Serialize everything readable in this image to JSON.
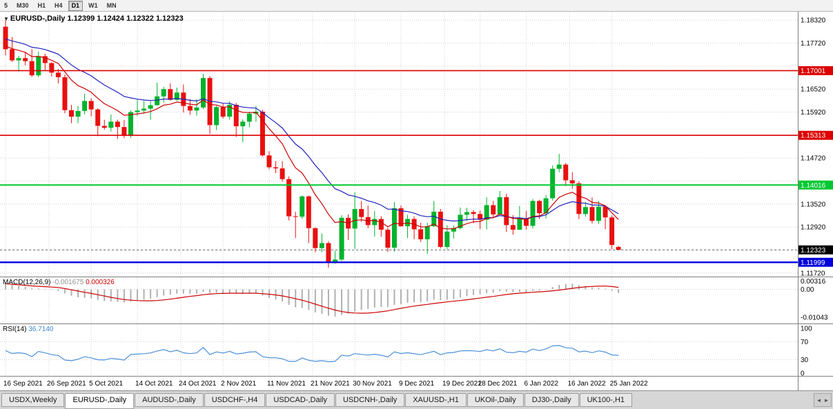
{
  "toolbar": {
    "timeframe_buttons": [
      "5",
      "M30",
      "H1",
      "H4",
      "D1",
      "W1",
      "MN"
    ],
    "active": "D1"
  },
  "chart_header": {
    "dropdown_icon": "▼",
    "symbol": "EURUSD-,Daily",
    "open": "1.12399",
    "high": "1.12424",
    "low": "1.12322",
    "close": "1.12323"
  },
  "chart_data": {
    "type": "candlestick",
    "symbol": "EURUSD",
    "timeframe": "Daily",
    "title": "EURUSD-,Daily",
    "quote": {
      "open": "1.12399",
      "high": "1.12424",
      "low": "1.12322",
      "close": "1.12323"
    },
    "price_axis": {
      "top_tick": 1.1832,
      "step": 0.006,
      "count": 12,
      "hidden_ticks": [
        1.1712,
        1.1532,
        1.1412,
        1.1232
      ],
      "range_top": 1.1845,
      "range_bottom": 1.1168
    },
    "x_axis_labels": [
      {
        "label": "16 Sep 2021",
        "i": 0
      },
      {
        "label": "26 Sep 2021",
        "i": 6.6
      },
      {
        "label": "5 Oct 2021",
        "i": 13
      },
      {
        "label": "14 Oct 2021",
        "i": 20
      },
      {
        "label": "24 Oct 2021",
        "i": 26.6
      },
      {
        "label": "2 Nov 2021",
        "i": 33
      },
      {
        "label": "11 Nov 2021",
        "i": 40
      },
      {
        "label": "21 Nov 2021",
        "i": 46.6
      },
      {
        "label": "30 Nov 2021",
        "i": 53
      },
      {
        "label": "9 Dec 2021",
        "i": 60
      },
      {
        "label": "19 Dec 2021",
        "i": 66.6
      },
      {
        "label": "28 Dec 2021",
        "i": 72
      },
      {
        "label": "6 Jan 2022",
        "i": 79
      },
      {
        "label": "16 Jan 2022",
        "i": 85.6
      },
      {
        "label": "25 Jan 2022",
        "i": 92
      }
    ],
    "h_lines": [
      {
        "price": 1.17001,
        "label": "1.17001",
        "color": "#dd0000",
        "width": 1.6
      },
      {
        "price": 1.15313,
        "label": "1.15313",
        "color": "#dd0000",
        "width": 1.6
      },
      {
        "price": 1.14016,
        "label": "1.14016",
        "color": "#00c832",
        "width": 2
      },
      {
        "price": 1.11999,
        "label": "1.11999",
        "color": "#0000dd",
        "width": 2.4
      }
    ],
    "current_price": {
      "price": 1.12323,
      "label": "1.12323",
      "color": "#000000"
    },
    "moving_averages": [
      {
        "period": 20,
        "color": "#2020c0",
        "seed_offset": 0.003
      },
      {
        "period": 10,
        "color": "#cc0000",
        "seed_offset": 0.001
      }
    ],
    "colors": {
      "bull": "#00b32c",
      "bear": "#e81010",
      "macd_hist": "#b0b0b0",
      "macd_signal": "#cc0000",
      "rsi": "#4a90d9",
      "grid": "#cfcfcf"
    },
    "macd": {
      "label": "MACD(12,26,9)",
      "fast": 12,
      "slow": 26,
      "signal": 9,
      "value_main": "-0.001675",
      "value_signal": "0.000326",
      "axis_ticks": [
        {
          "v": 0.00316,
          "label": "0.00316"
        },
        {
          "v": 0,
          "label": "0.00"
        },
        {
          "v": -0.01043,
          "label": "-0.01043"
        }
      ],
      "range_top": 0.004,
      "range_bottom": -0.012
    },
    "rsi": {
      "label": "RSI(14)",
      "period": 14,
      "value": "36.7140",
      "axis_ticks": [
        {
          "v": 100,
          "label": "100"
        },
        {
          "v": 70,
          "label": "70"
        },
        {
          "v": 30,
          "label": "30"
        },
        {
          "v": 0,
          "label": "0"
        }
      ],
      "levels": [
        70,
        30
      ]
    },
    "candles": [
      [
        1.1815,
        1.1832,
        1.174,
        1.1756
      ],
      [
        1.1756,
        1.1788,
        1.1723,
        1.1727
      ],
      [
        1.1727,
        1.1739,
        1.1698,
        1.1733
      ],
      [
        1.1733,
        1.1749,
        1.1714,
        1.1725
      ],
      [
        1.1725,
        1.1756,
        1.1684,
        1.1688
      ],
      [
        1.1688,
        1.175,
        1.1683,
        1.1738
      ],
      [
        1.1738,
        1.1745,
        1.1701,
        1.172
      ],
      [
        1.172,
        1.1722,
        1.1685,
        1.1695
      ],
      [
        1.1695,
        1.1705,
        1.1667,
        1.1683
      ],
      [
        1.1683,
        1.169,
        1.1589,
        1.1597
      ],
      [
        1.1597,
        1.1611,
        1.1563,
        1.158
      ],
      [
        1.158,
        1.1608,
        1.1563,
        1.1595
      ],
      [
        1.1595,
        1.164,
        1.1586,
        1.1621
      ],
      [
        1.1621,
        1.1628,
        1.1581,
        1.1599
      ],
      [
        1.1599,
        1.1602,
        1.1529,
        1.1556
      ],
      [
        1.1556,
        1.1572,
        1.1546,
        1.1551
      ],
      [
        1.1551,
        1.1586,
        1.1541,
        1.1567
      ],
      [
        1.1567,
        1.1572,
        1.1522,
        1.1553
      ],
      [
        1.1553,
        1.1571,
        1.1524,
        1.153
      ],
      [
        1.153,
        1.1597,
        1.1525,
        1.1592
      ],
      [
        1.1592,
        1.1624,
        1.1582,
        1.1596
      ],
      [
        1.1596,
        1.1621,
        1.1588,
        1.1601
      ],
      [
        1.1601,
        1.1621,
        1.1572,
        1.161
      ],
      [
        1.161,
        1.1669,
        1.1609,
        1.1633
      ],
      [
        1.1633,
        1.1658,
        1.1617,
        1.1652
      ],
      [
        1.1652,
        1.1667,
        1.1622,
        1.1624
      ],
      [
        1.1624,
        1.1656,
        1.1621,
        1.1643
      ],
      [
        1.1643,
        1.1664,
        1.1591,
        1.1608
      ],
      [
        1.1608,
        1.1626,
        1.1585,
        1.1596
      ],
      [
        1.1596,
        1.1626,
        1.1583,
        1.1604
      ],
      [
        1.1604,
        1.1692,
        1.16,
        1.1681
      ],
      [
        1.1681,
        1.1686,
        1.1535,
        1.1558
      ],
      [
        1.1558,
        1.1609,
        1.1545,
        1.1605
      ],
      [
        1.1605,
        1.1614,
        1.1575,
        1.158
      ],
      [
        1.158,
        1.162,
        1.1572,
        1.1611
      ],
      [
        1.1611,
        1.1616,
        1.1527,
        1.1555
      ],
      [
        1.1555,
        1.1573,
        1.1513,
        1.1567
      ],
      [
        1.1567,
        1.1593,
        1.1552,
        1.1588
      ],
      [
        1.1588,
        1.1608,
        1.1567,
        1.1593
      ],
      [
        1.1593,
        1.1598,
        1.1476,
        1.1479
      ],
      [
        1.1479,
        1.149,
        1.1443,
        1.1448
      ],
      [
        1.1448,
        1.1464,
        1.1433,
        1.1445
      ],
      [
        1.1445,
        1.1464,
        1.141,
        1.1417
      ],
      [
        1.1417,
        1.1424,
        1.1309,
        1.132
      ],
      [
        1.132,
        1.1332,
        1.1263,
        1.1319
      ],
      [
        1.1319,
        1.1374,
        1.1314,
        1.1372
      ],
      [
        1.1372,
        1.1374,
        1.125,
        1.1289
      ],
      [
        1.1289,
        1.1291,
        1.1226,
        1.1237
      ],
      [
        1.1237,
        1.1275,
        1.1226,
        1.125
      ],
      [
        1.125,
        1.1255,
        1.1186,
        1.12
      ],
      [
        1.12,
        1.123,
        1.1196,
        1.1207
      ],
      [
        1.1207,
        1.1323,
        1.1203,
        1.1316
      ],
      [
        1.1316,
        1.1325,
        1.1258,
        1.1288
      ],
      [
        1.1288,
        1.1383,
        1.1235,
        1.1339
      ],
      [
        1.1339,
        1.136,
        1.1305,
        1.1318
      ],
      [
        1.1318,
        1.1348,
        1.1289,
        1.1297
      ],
      [
        1.1297,
        1.1334,
        1.1267,
        1.1313
      ],
      [
        1.1313,
        1.132,
        1.1267,
        1.1285
      ],
      [
        1.1285,
        1.129,
        1.1227,
        1.1238
      ],
      [
        1.1238,
        1.1357,
        1.1228,
        1.1341
      ],
      [
        1.1341,
        1.1348,
        1.1293,
        1.1294
      ],
      [
        1.1294,
        1.1324,
        1.1263,
        1.1313
      ],
      [
        1.1313,
        1.132,
        1.126,
        1.1286
      ],
      [
        1.1286,
        1.1303,
        1.1253,
        1.126
      ],
      [
        1.126,
        1.1303,
        1.1222,
        1.1294
      ],
      [
        1.1294,
        1.136,
        1.1292,
        1.1332
      ],
      [
        1.1332,
        1.1339,
        1.1236,
        1.124
      ],
      [
        1.124,
        1.1297,
        1.1234,
        1.128
      ],
      [
        1.128,
        1.1296,
        1.1262,
        1.1289
      ],
      [
        1.1289,
        1.1343,
        1.1286,
        1.1324
      ],
      [
        1.1324,
        1.1342,
        1.1308,
        1.1331
      ],
      [
        1.1331,
        1.1336,
        1.1302,
        1.1326
      ],
      [
        1.1326,
        1.1335,
        1.1287,
        1.1311
      ],
      [
        1.1311,
        1.137,
        1.1286,
        1.1349
      ],
      [
        1.1349,
        1.136,
        1.1316,
        1.1325
      ],
      [
        1.1325,
        1.1386,
        1.1321,
        1.137
      ],
      [
        1.137,
        1.1379,
        1.1279,
        1.1297
      ],
      [
        1.1297,
        1.1323,
        1.1272,
        1.1285
      ],
      [
        1.1285,
        1.1347,
        1.1284,
        1.1313
      ],
      [
        1.1313,
        1.1334,
        1.1285,
        1.1295
      ],
      [
        1.1295,
        1.1365,
        1.1288,
        1.136
      ],
      [
        1.136,
        1.1363,
        1.1313,
        1.1328
      ],
      [
        1.1328,
        1.1375,
        1.1314,
        1.1367
      ],
      [
        1.1367,
        1.1453,
        1.1361,
        1.1444
      ],
      [
        1.1444,
        1.1483,
        1.1435,
        1.1455
      ],
      [
        1.1455,
        1.1459,
        1.1399,
        1.1414
      ],
      [
        1.1414,
        1.1435,
        1.1392,
        1.1406
      ],
      [
        1.1406,
        1.1411,
        1.1313,
        1.1326
      ],
      [
        1.1326,
        1.1357,
        1.1319,
        1.1344
      ],
      [
        1.1344,
        1.1369,
        1.1301,
        1.1308
      ],
      [
        1.1308,
        1.136,
        1.13,
        1.1345
      ],
      [
        1.1345,
        1.1349,
        1.1286,
        1.1317
      ],
      [
        1.1317,
        1.1322,
        1.1234,
        1.1245
      ],
      [
        1.12399,
        1.12424,
        1.12322,
        1.12323
      ]
    ]
  },
  "tabs": {
    "items": [
      "USDX,Weekly",
      "EURUSD-,Daily",
      "AUDUSD-,Daily",
      "USDCHF-,H4",
      "USDCAD-,Daily",
      "USDCNH-,Daily",
      "XAUUSD-,H1",
      "UKOil-,Daily",
      "DJ30-,Daily",
      "UK100-,H1"
    ],
    "active": "EURUSD-,Daily"
  }
}
